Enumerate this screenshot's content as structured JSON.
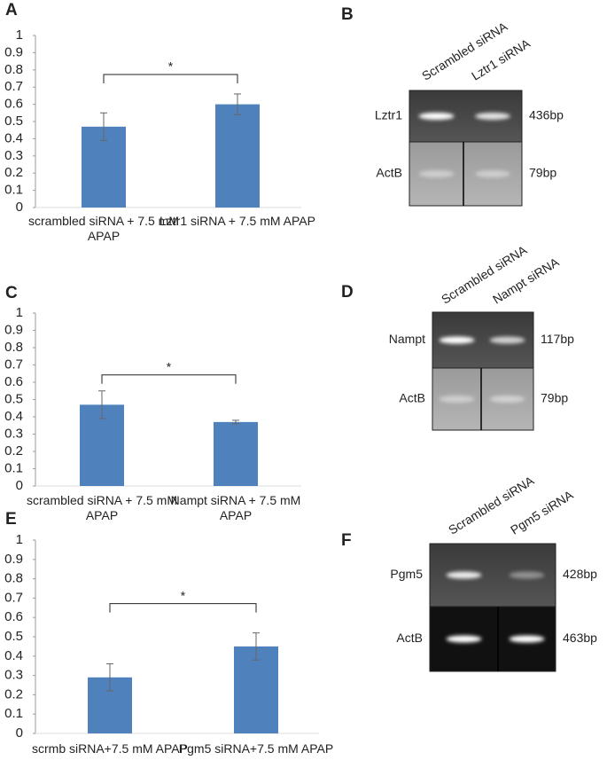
{
  "chart_data": [
    {
      "type": "bar",
      "panel": "A",
      "categories": [
        "scrambled siRNA + 7.5 mM APAP",
        "Lztr1 siRNA + 7.5 mM APAP"
      ],
      "values": [
        0.47,
        0.6
      ],
      "errors": [
        0.08,
        0.06
      ],
      "color": "#4f81bd",
      "ylim": [
        0,
        1
      ],
      "yticks": [
        0,
        0.1,
        0.2,
        0.3,
        0.4,
        0.5,
        0.6,
        0.7,
        0.8,
        0.9,
        1
      ],
      "annotation": "*"
    },
    {
      "type": "bar",
      "panel": "C",
      "categories": [
        "scrambled siRNA + 7.5 mM APAP",
        "Nampt siRNA + 7.5 mM APAP"
      ],
      "values": [
        0.47,
        0.37
      ],
      "errors": [
        0.08,
        0.01
      ],
      "color": "#4f81bd",
      "ylim": [
        0,
        1
      ],
      "yticks": [
        0,
        0.1,
        0.2,
        0.3,
        0.4,
        0.5,
        0.6,
        0.7,
        0.8,
        0.9,
        1
      ],
      "annotation": "*"
    },
    {
      "type": "bar",
      "panel": "E",
      "categories": [
        "scrmb siRNA+7.5 mM APAP",
        "Pgm5 siRNA+7.5 mM APAP"
      ],
      "values": [
        0.29,
        0.45
      ],
      "errors": [
        0.07,
        0.07
      ],
      "color": "#4f81bd",
      "ylim": [
        0,
        1
      ],
      "yticks": [
        0,
        0.1,
        0.2,
        0.3,
        0.4,
        0.5,
        0.6,
        0.7,
        0.8,
        0.9,
        1
      ],
      "annotation": "*"
    }
  ],
  "gels": [
    {
      "panel": "B",
      "lanes": [
        "Scrambled siRNA",
        "Lztr1 siRNA"
      ],
      "bands": [
        {
          "gene": "Lztr1",
          "size": "436bp"
        },
        {
          "gene": "ActB",
          "size": "79bp"
        }
      ]
    },
    {
      "panel": "D",
      "lanes": [
        "Scrambled siRNA",
        "Nampt siRNA"
      ],
      "bands": [
        {
          "gene": "Nampt",
          "size": "117bp"
        },
        {
          "gene": "ActB",
          "size": "79bp"
        }
      ]
    },
    {
      "panel": "F",
      "lanes": [
        "Scrambled siRNA",
        "Pgm5 siRNA"
      ],
      "bands": [
        {
          "gene": "Pgm5",
          "size": "428bp"
        },
        {
          "gene": "ActB",
          "size": "463bp"
        }
      ]
    }
  ]
}
